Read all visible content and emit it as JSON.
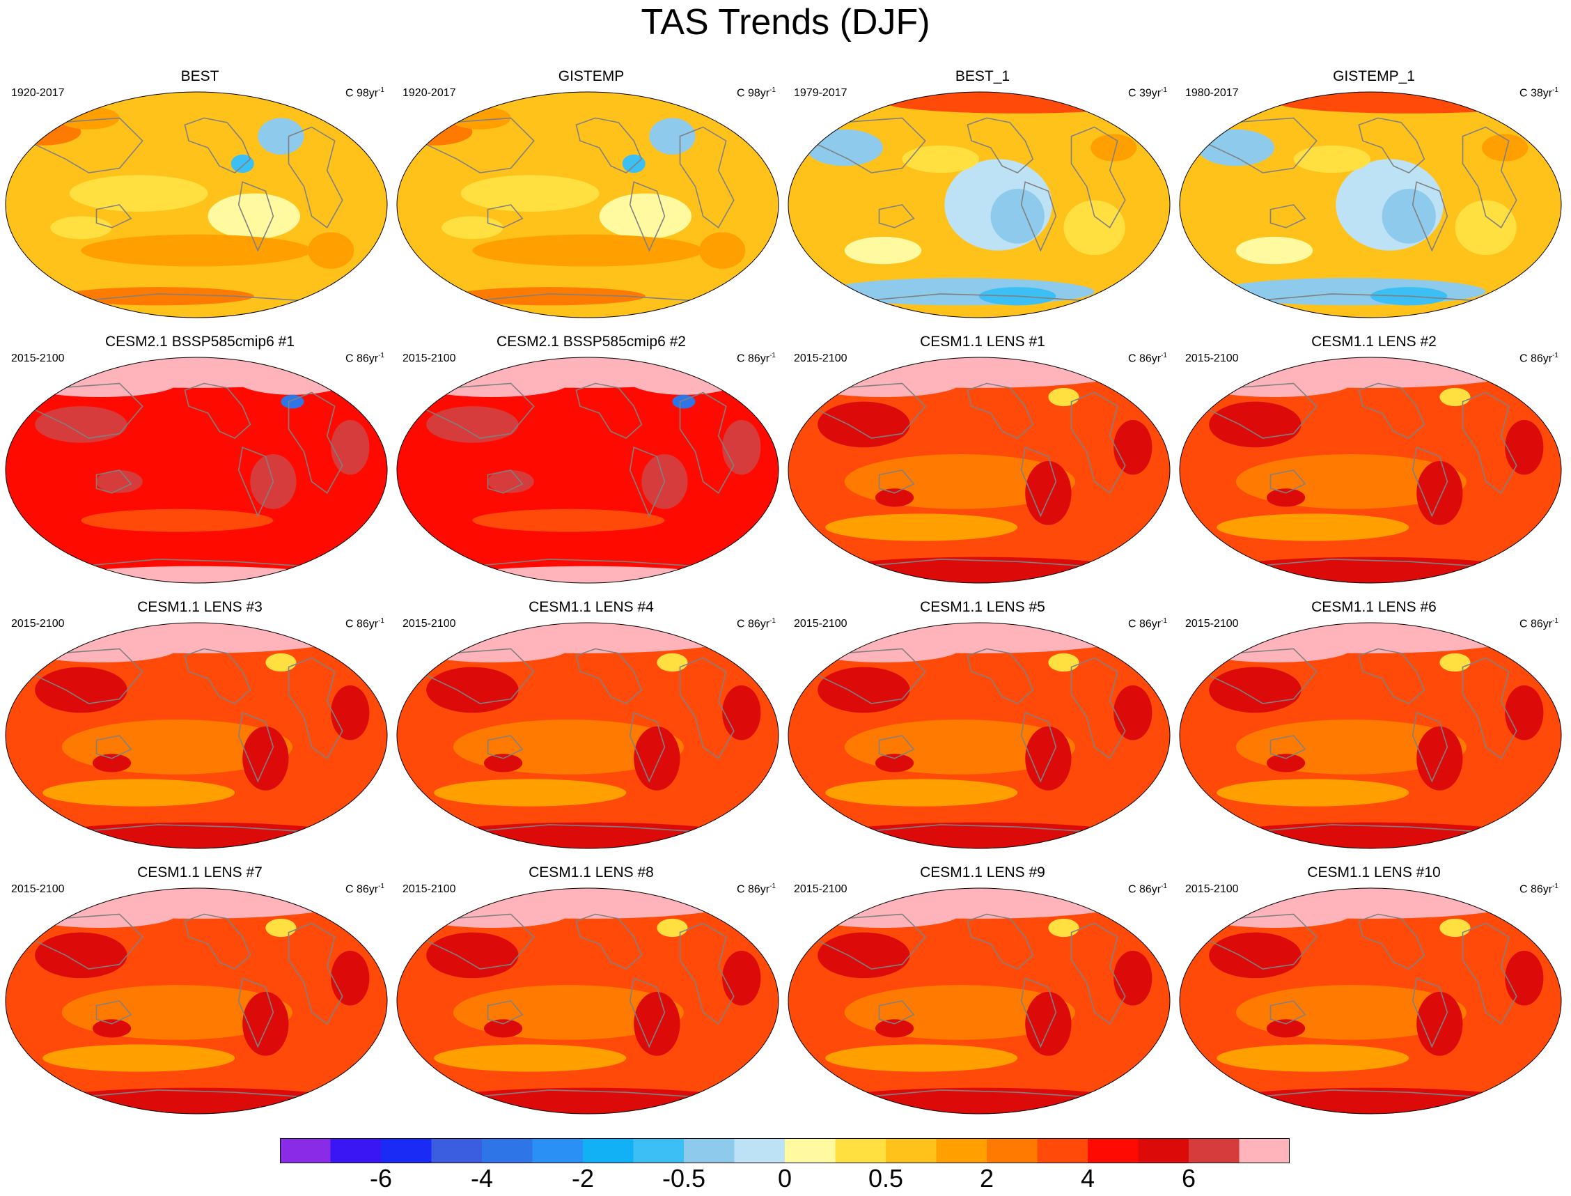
{
  "title": "TAS Trends (DJF)",
  "panels": [
    {
      "title": "BEST",
      "period": "1920-2017",
      "units": "C",
      "count": "98",
      "unit_suffix": "yr",
      "unit_exp": "-1",
      "style": "obs"
    },
    {
      "title": "GISTEMP",
      "period": "1920-2017",
      "units": "C",
      "count": "98",
      "unit_suffix": "yr",
      "unit_exp": "-1",
      "style": "obs"
    },
    {
      "title": "BEST_1",
      "period": "1979-2017",
      "units": "C",
      "count": "39",
      "unit_suffix": "yr",
      "unit_exp": "-1",
      "style": "obs_cool"
    },
    {
      "title": "GISTEMP_1",
      "period": "1980-2017",
      "units": "C",
      "count": "38",
      "unit_suffix": "yr",
      "unit_exp": "-1",
      "style": "obs_cool"
    },
    {
      "title": "CESM2.1 BSSP585cmip6 #1",
      "period": "2015-2100",
      "units": "C",
      "count": "86",
      "unit_suffix": "yr",
      "unit_exp": "-1",
      "style": "cesm2"
    },
    {
      "title": "CESM2.1 BSSP585cmip6 #2",
      "period": "2015-2100",
      "units": "C",
      "count": "86",
      "unit_suffix": "yr",
      "unit_exp": "-1",
      "style": "cesm2"
    },
    {
      "title": "CESM1.1 LENS #1",
      "period": "2015-2100",
      "units": "C",
      "count": "86",
      "unit_suffix": "yr",
      "unit_exp": "-1",
      "style": "lens"
    },
    {
      "title": "CESM1.1 LENS #2",
      "period": "2015-2100",
      "units": "C",
      "count": "86",
      "unit_suffix": "yr",
      "unit_exp": "-1",
      "style": "lens"
    },
    {
      "title": "CESM1.1 LENS #3",
      "period": "2015-2100",
      "units": "C",
      "count": "86",
      "unit_suffix": "yr",
      "unit_exp": "-1",
      "style": "lens"
    },
    {
      "title": "CESM1.1 LENS #4",
      "period": "2015-2100",
      "units": "C",
      "count": "86",
      "unit_suffix": "yr",
      "unit_exp": "-1",
      "style": "lens"
    },
    {
      "title": "CESM1.1 LENS #5",
      "period": "2015-2100",
      "units": "C",
      "count": "86",
      "unit_suffix": "yr",
      "unit_exp": "-1",
      "style": "lens"
    },
    {
      "title": "CESM1.1 LENS #6",
      "period": "2015-2100",
      "units": "C",
      "count": "86",
      "unit_suffix": "yr",
      "unit_exp": "-1",
      "style": "lens"
    },
    {
      "title": "CESM1.1 LENS #7",
      "period": "2015-2100",
      "units": "C",
      "count": "86",
      "unit_suffix": "yr",
      "unit_exp": "-1",
      "style": "lens"
    },
    {
      "title": "CESM1.1 LENS #8",
      "period": "2015-2100",
      "units": "C",
      "count": "86",
      "unit_suffix": "yr",
      "unit_exp": "-1",
      "style": "lens"
    },
    {
      "title": "CESM1.1 LENS #9",
      "period": "2015-2100",
      "units": "C",
      "count": "86",
      "unit_suffix": "yr",
      "unit_exp": "-1",
      "style": "lens"
    },
    {
      "title": "CESM1.1 LENS #10",
      "period": "2015-2100",
      "units": "C",
      "count": "86",
      "unit_suffix": "yr",
      "unit_exp": "-1",
      "style": "lens"
    }
  ],
  "colorbar": {
    "colors": [
      "#8a2be8",
      "#3b16f5",
      "#1a2bf5",
      "#3b5de0",
      "#2e75e8",
      "#2a90f5",
      "#12b0f5",
      "#3cbff5",
      "#8ecaeb",
      "#bde2f5",
      "#fff9a0",
      "#ffe040",
      "#ffc21a",
      "#ffa000",
      "#ff7a00",
      "#ff4a0a",
      "#ff0a00",
      "#dd0a0a",
      "#d63c3c",
      "#ffb3ba"
    ],
    "tick_labels": [
      "-6",
      "-4",
      "-2",
      "-0.5",
      "0",
      "0.5",
      "2",
      "4",
      "6"
    ]
  }
}
